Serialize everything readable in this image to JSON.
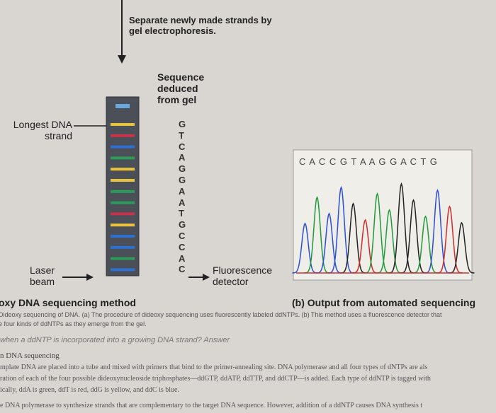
{
  "figure": {
    "top_note": [
      "Separate newly made strands by",
      "gel electrophoresis."
    ],
    "deduced_label": [
      "Sequence",
      "deduced",
      "from gel"
    ],
    "longest_label": [
      "Longest DNA",
      "strand"
    ],
    "gel_sequence": [
      "G",
      "T",
      "C",
      "A",
      "G",
      "G",
      "A",
      "A",
      "T",
      "G",
      "C",
      "C",
      "A",
      "C"
    ],
    "laser_label": [
      "Laser",
      "beam"
    ],
    "detector_label": [
      "Fluorescence",
      "detector"
    ],
    "output_sequence": "C A C C G T A A G G A C T G"
  },
  "captions": {
    "part_a": "oxy DNA sequencing method",
    "part_b": "(b) Output from automated sequencing",
    "legend_lines": [
      "Dideoxy sequencing of DNA. (a) The procedure of dideoxy sequencing uses fluorescently labeled ddNTPs. (b) This method uses a fluorescence detector that",
      "e four kinds of ddNTPs as they emerge from the gel."
    ]
  },
  "question": "when a ddNTP is incorporated into a growing DNA strand? Answer",
  "section_heading": "n DNA sequencing",
  "body_lines": [
    "mplate DNA are placed into a tube and mixed with primers that bind to the primer-annealing site. DNA polymerase and all four types of dNTPs are als",
    "ration of each of the four possible dideoxynucleoside triphosphates—ddGTP, ddATP, ddTTP, and ddCTP—is added. Each type of ddNTP is tagged with",
    "ically, ddA is green, ddT is red, ddG is yellow, and ddC is blue.",
    "e DNA polymerase to synthesize strands that are complementary to the target DNA sequence. However, addition of a ddNTP causes DNA synthesis t"
  ]
}
